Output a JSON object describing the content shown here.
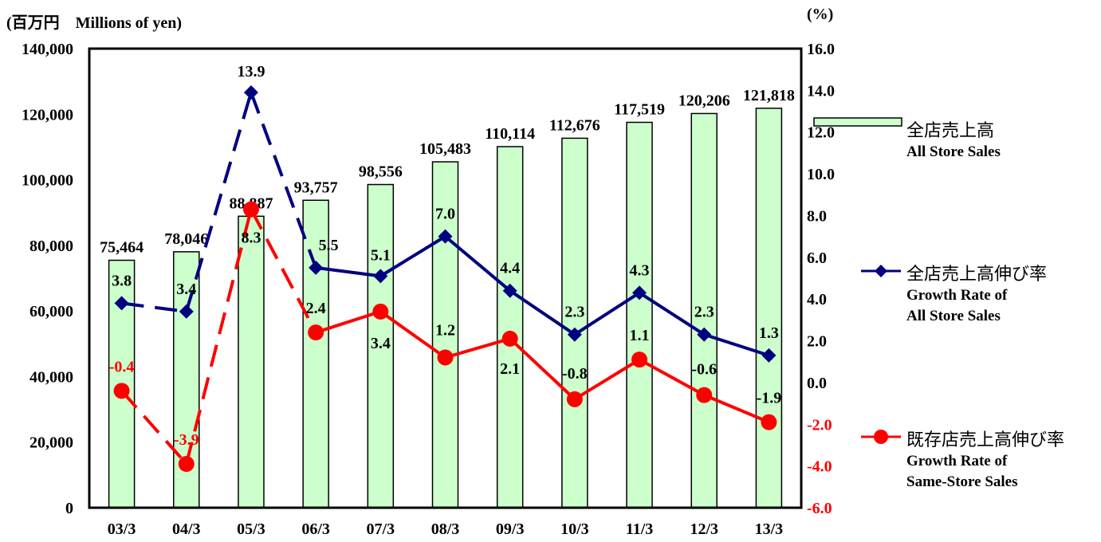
{
  "chart_data": {
    "type": "bar",
    "left_axis_label": "(百万円　Millions of yen)",
    "right_axis_label": "(%)",
    "categories": [
      "03/3",
      "04/3",
      "05/3",
      "06/3",
      "07/3",
      "08/3",
      "09/3",
      "10/3",
      "11/3",
      "12/3",
      "13/3"
    ],
    "y_left_ticks": [
      "0",
      "20,000",
      "40,000",
      "60,000",
      "80,000",
      "100,000",
      "120,000",
      "140,000"
    ],
    "y_right_ticks": [
      "-6.0",
      "-4.0",
      "-2.0",
      "0.0",
      "2.0",
      "4.0",
      "6.0",
      "8.0",
      "10.0",
      "12.0",
      "14.0",
      "16.0"
    ],
    "ylim_left": [
      0,
      140000
    ],
    "ylim_right": [
      -6,
      16
    ],
    "series": [
      {
        "name": "全店売上高 All Store Sales",
        "kind": "bar",
        "axis": "left",
        "color": "#ccffcc",
        "values": [
          75464,
          78046,
          88887,
          93757,
          98556,
          105483,
          110114,
          112676,
          117519,
          120206,
          121818
        ],
        "labels": [
          "75,464",
          "78,046",
          "88,887",
          "93,757",
          "98,556",
          "105,483",
          "110,114",
          "112,676",
          "117,519",
          "120,206",
          "121,818"
        ]
      },
      {
        "name": "全店売上高伸び率 Growth Rate of All Store Sales",
        "kind": "line",
        "axis": "right",
        "color": "#000080",
        "marker": "diamond",
        "values": [
          3.8,
          3.4,
          13.9,
          5.5,
          5.1,
          7.0,
          4.4,
          2.3,
          4.3,
          2.3,
          1.3
        ],
        "labels": [
          "3.8",
          "3.4",
          "13.9",
          "5.5",
          "5.1",
          "7.0",
          "4.4",
          "2.3",
          "4.3",
          "2.3",
          "1.3"
        ],
        "dashed_until_index": 3
      },
      {
        "name": "既存店売上高伸び率 Growth Rate of Same-Store Sales",
        "kind": "line",
        "axis": "right",
        "color": "#ff0000",
        "marker": "circle",
        "values": [
          -0.4,
          -3.9,
          8.3,
          2.4,
          3.4,
          1.2,
          2.1,
          -0.8,
          1.1,
          -0.6,
          -1.9
        ],
        "labels": [
          "-0.4",
          "-3.9",
          "8.3",
          "2.4",
          "3.4",
          "1.2",
          "2.1",
          "-0.8",
          "1.1",
          "-0.6",
          "-1.9"
        ],
        "dashed_until_index": 3
      }
    ],
    "legend": {
      "placement": "right",
      "items": [
        {
          "jp": "全店売上高",
          "en": [
            "All Store Sales"
          ]
        },
        {
          "jp": "全店売上高伸び率",
          "en": [
            "Growth Rate of",
            "All Store Sales"
          ]
        },
        {
          "jp": "既存店売上高伸び率",
          "en": [
            "Growth Rate of",
            "Same-Store Sales"
          ]
        }
      ]
    }
  }
}
